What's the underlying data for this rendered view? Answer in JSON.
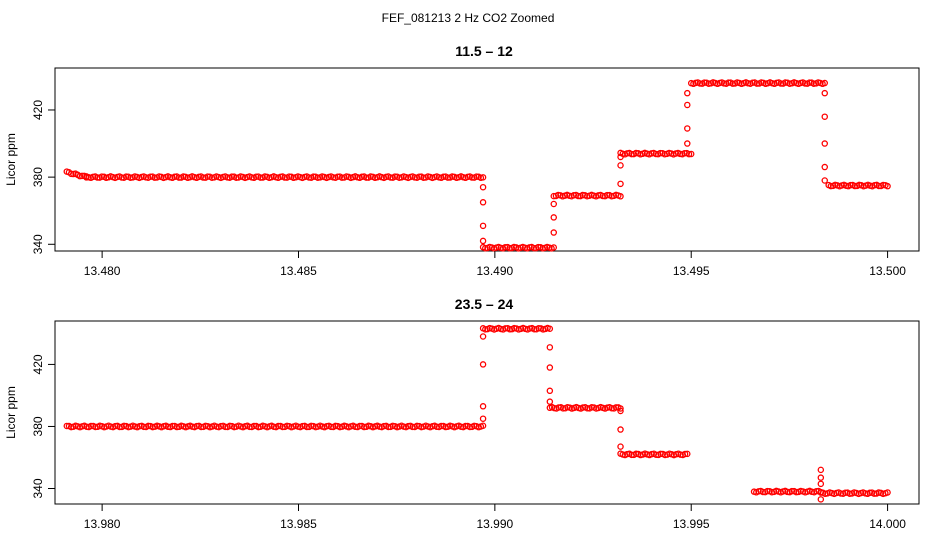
{
  "figure": {
    "title": "FEF_081213  2 Hz CO2 Zoomed",
    "point_color": "#ff0000"
  },
  "chart_data": [
    {
      "type": "scatter",
      "title": "11.5 – 12",
      "xlabel": "",
      "ylabel": "Licor ppm",
      "xlim": [
        13.4788,
        13.5008
      ],
      "ylim": [
        336,
        445
      ],
      "xticks": [
        13.48,
        13.485,
        13.49,
        13.495,
        13.5
      ],
      "xtick_labels": [
        "13.480",
        "13.485",
        "13.490",
        "13.495",
        "13.500"
      ],
      "yticks": [
        340,
        380,
        420
      ],
      "ytick_labels": [
        "340",
        "380",
        "420"
      ],
      "grid": false,
      "marker": "open-circle",
      "segments": [
        {
          "x0": 13.4791,
          "x1": 13.4796,
          "y0": 383,
          "y1": 380
        },
        {
          "x0": 13.4796,
          "x1": 13.4897,
          "y0": 380,
          "y1": 380
        },
        {
          "x0": 13.4897,
          "x1": 13.4915,
          "y0": 338,
          "y1": 338
        },
        {
          "x0": 13.4915,
          "x1": 13.4932,
          "y0": 369,
          "y1": 369
        },
        {
          "x0": 13.4932,
          "x1": 13.495,
          "y0": 394,
          "y1": 394
        },
        {
          "x0": 13.495,
          "x1": 13.4984,
          "y0": 436,
          "y1": 436
        },
        {
          "x0": 13.4985,
          "x1": 13.5,
          "y0": 375,
          "y1": 375
        }
      ],
      "transitions": [
        {
          "x": 13.4897,
          "y": [
            374,
            365,
            351,
            342
          ]
        },
        {
          "x": 13.4915,
          "y": [
            347,
            356,
            364
          ]
        },
        {
          "x": 13.4932,
          "y": [
            376,
            387,
            392
          ]
        },
        {
          "x": 13.4949,
          "y": [
            400,
            409,
            423,
            430
          ]
        },
        {
          "x": 13.4984,
          "y": [
            430,
            416,
            400,
            386,
            378
          ]
        }
      ]
    },
    {
      "type": "scatter",
      "title": "23.5 – 24",
      "xlabel": "",
      "ylabel": "Licor ppm",
      "xlim": [
        13.9788,
        14.0008
      ],
      "ylim": [
        330,
        448
      ],
      "xticks": [
        13.98,
        13.985,
        13.99,
        13.995,
        14.0
      ],
      "xtick_labels": [
        "13.980",
        "13.985",
        "13.990",
        "13.995",
        "14.000"
      ],
      "yticks": [
        340,
        380,
        420
      ],
      "ytick_labels": [
        "340",
        "380",
        "420"
      ],
      "grid": false,
      "marker": "open-circle",
      "segments": [
        {
          "x0": 13.9791,
          "x1": 13.9897,
          "y0": 380,
          "y1": 380
        },
        {
          "x0": 13.9897,
          "x1": 13.9914,
          "y0": 443,
          "y1": 443
        },
        {
          "x0": 13.9914,
          "x1": 13.9932,
          "y0": 392,
          "y1": 392
        },
        {
          "x0": 13.9932,
          "x1": 13.9949,
          "y0": 362,
          "y1": 362
        },
        {
          "x0": 13.9966,
          "x1": 13.9983,
          "y0": 338,
          "y1": 338
        },
        {
          "x0": 13.9983,
          "x1": 14.0,
          "y0": 337,
          "y1": 337
        }
      ],
      "transitions": [
        {
          "x": 13.9897,
          "y": [
            385,
            393,
            420,
            438
          ]
        },
        {
          "x": 13.9914,
          "y": [
            431,
            418,
            403,
            396
          ]
        },
        {
          "x": 13.9932,
          "y": [
            390,
            378,
            367
          ]
        },
        {
          "x": 13.9983,
          "y": [
            352,
            347,
            343,
            333
          ]
        }
      ]
    }
  ]
}
